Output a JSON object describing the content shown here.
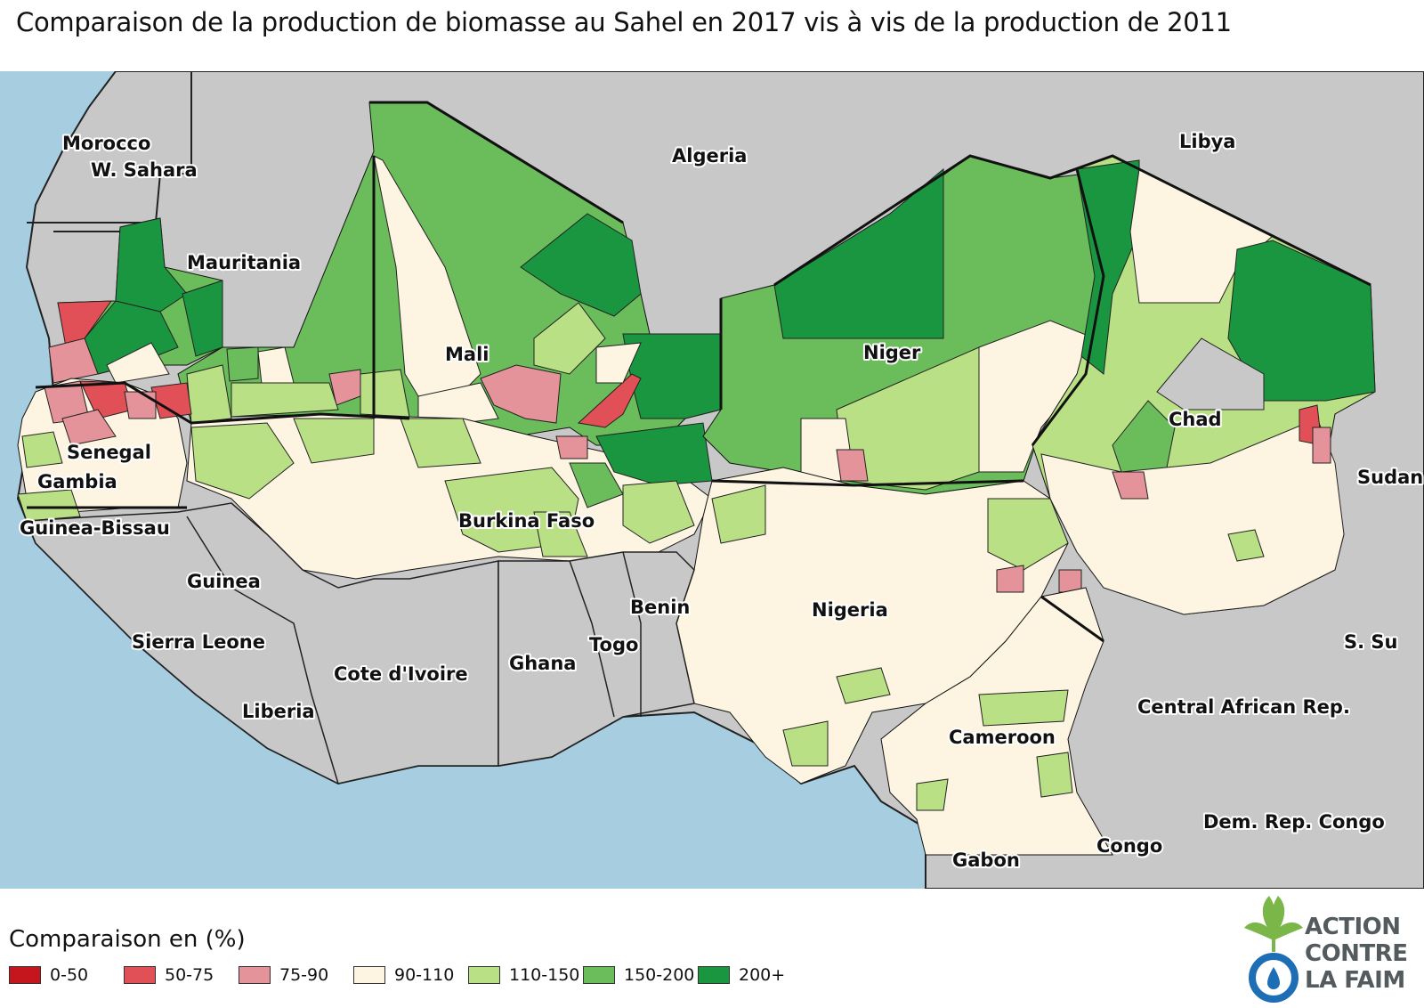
{
  "title": "Comparaison de la production de biomasse au Sahel en 2017 vis à vis de la production de 2011",
  "colors": {
    "sea": "#a6cde0",
    "land_other": "#c8c8c8",
    "c_0_50": "#c4161c",
    "c_50_75": "#e05056",
    "c_75_90": "#e39399",
    "c_90_110": "#fdf5e2",
    "c_110_150": "#b9e085",
    "c_150_200": "#6abd5a",
    "c_200_plus": "#1a9641"
  },
  "countries": [
    {
      "name": "Morocco"
    },
    {
      "name": "W. Sahara"
    },
    {
      "name": "Algeria"
    },
    {
      "name": "Libya"
    },
    {
      "name": "Mauritania"
    },
    {
      "name": "Mali"
    },
    {
      "name": "Niger"
    },
    {
      "name": "Chad"
    },
    {
      "name": "Sudan"
    },
    {
      "name": "Senegal"
    },
    {
      "name": "Gambia"
    },
    {
      "name": "Guinea-Bissau"
    },
    {
      "name": "Burkina Faso"
    },
    {
      "name": "Guinea"
    },
    {
      "name": "Benin"
    },
    {
      "name": "Nigeria"
    },
    {
      "name": "Sierra Leone"
    },
    {
      "name": "Togo"
    },
    {
      "name": "Cote d'Ivoire"
    },
    {
      "name": "Ghana"
    },
    {
      "name": "S. Su"
    },
    {
      "name": "Liberia"
    },
    {
      "name": "Central African Rep."
    },
    {
      "name": "Cameroon"
    },
    {
      "name": "Dem. Rep. Congo"
    },
    {
      "name": "Congo"
    },
    {
      "name": "Gabon"
    }
  ],
  "legend": {
    "title": "Comparaison en (%)",
    "items": [
      {
        "label": "0-50",
        "color": "#c4161c"
      },
      {
        "label": "50-75",
        "color": "#e05056"
      },
      {
        "label": "75-90",
        "color": "#e39399"
      },
      {
        "label": "90-110",
        "color": "#fdf5e2"
      },
      {
        "label": "110-150",
        "color": "#b9e085"
      },
      {
        "label": "150-200",
        "color": "#6abd5a"
      },
      {
        "label": "200+",
        "color": "#1a9641"
      }
    ]
  },
  "logo": {
    "line1": "ACTION",
    "line2": "CONTRE",
    "line3": "LA FAIM",
    "icon": "acf-logo-icon"
  }
}
